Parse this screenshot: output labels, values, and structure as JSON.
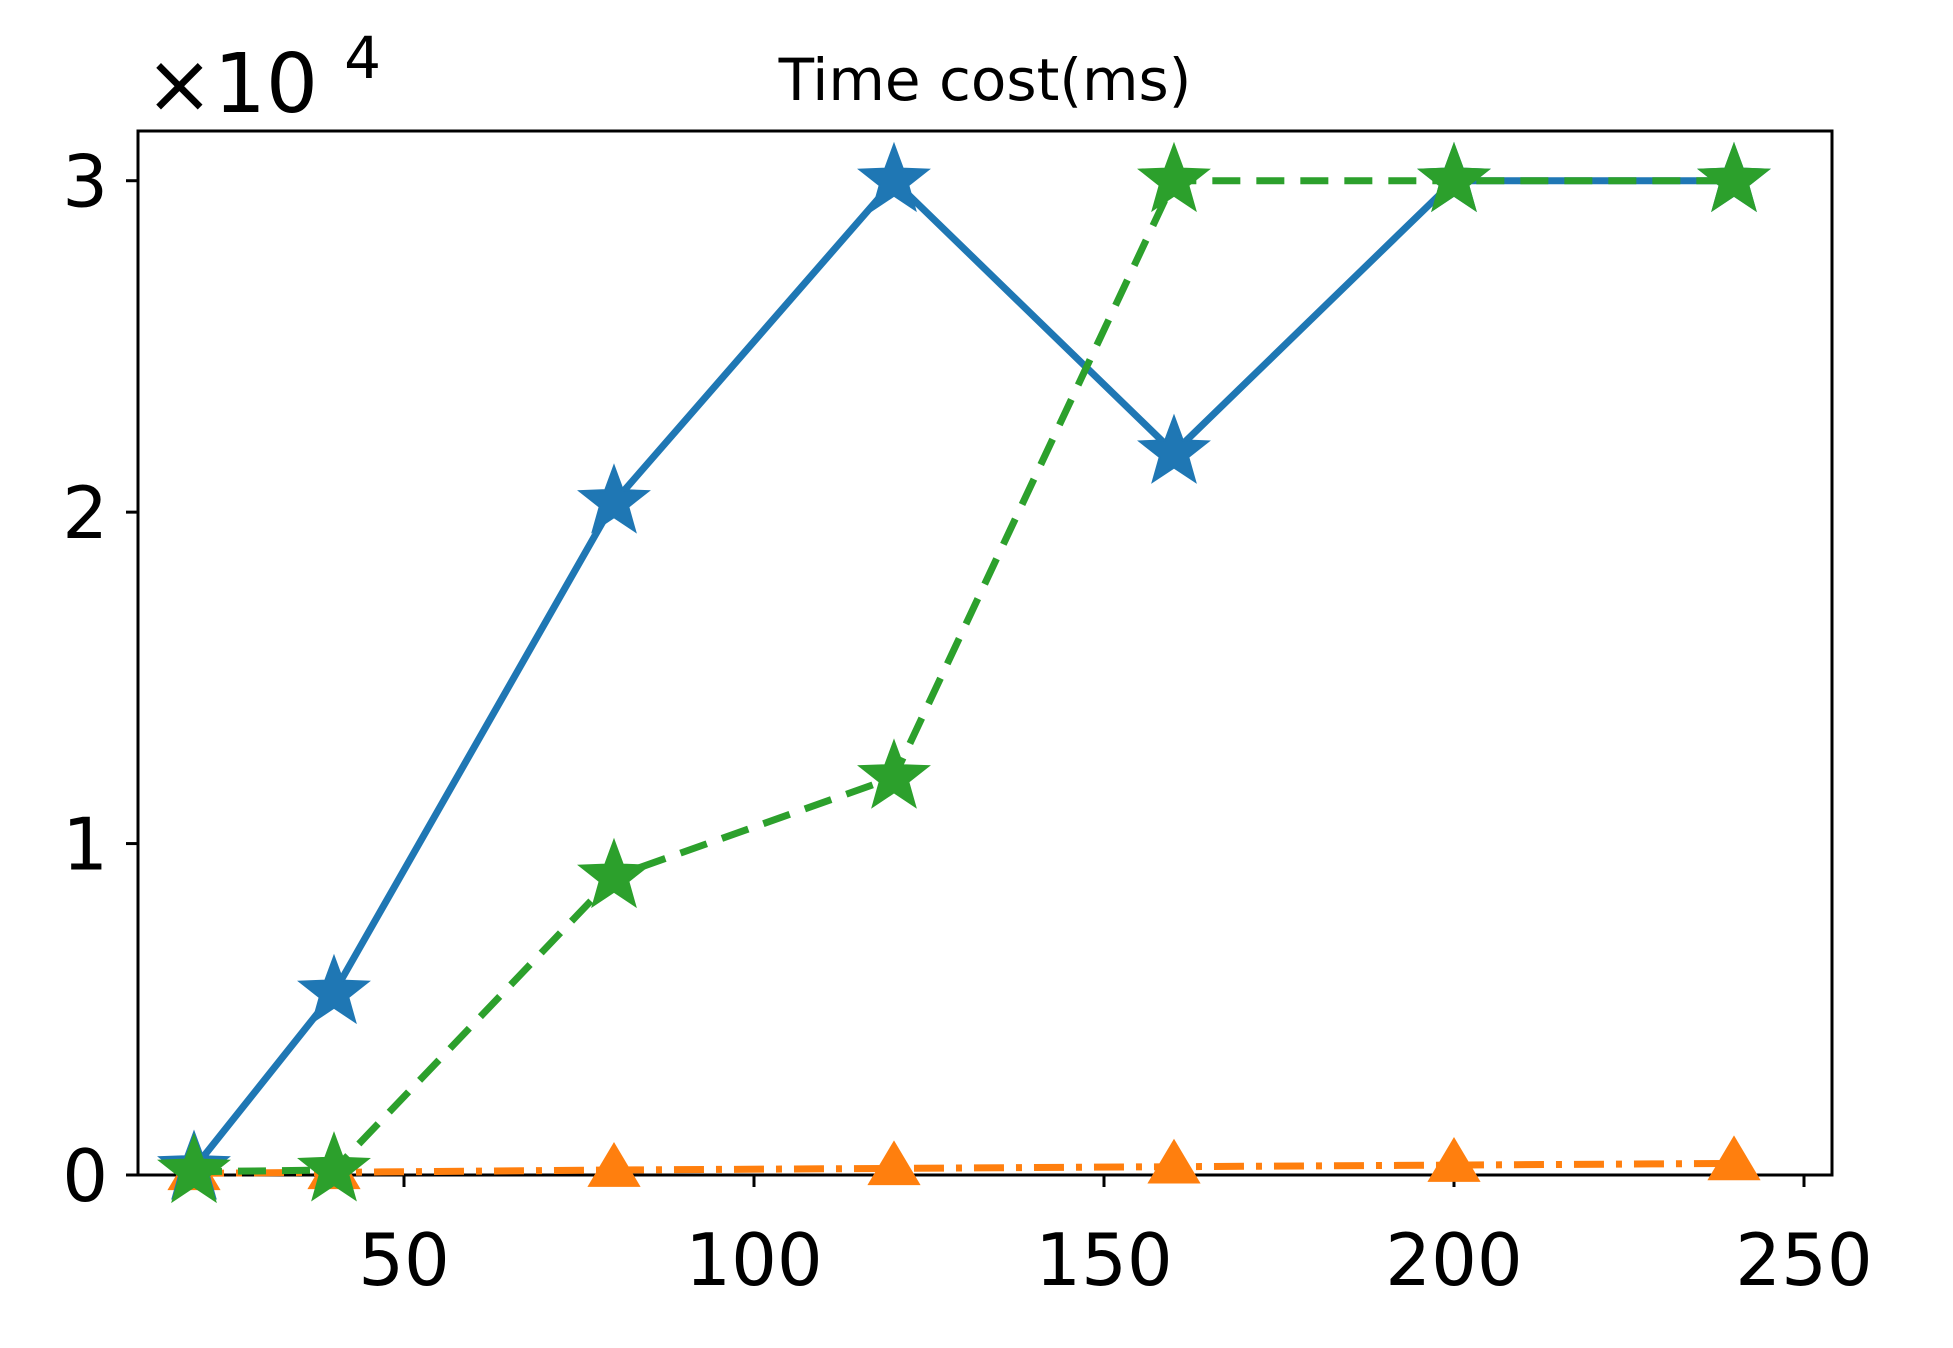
{
  "chart_data": {
    "type": "line",
    "title": "Time cost(ms)",
    "xlabel": "",
    "ylabel": "",
    "y_offset_text": {
      "base": "×10",
      "exponent": "4"
    },
    "xlim": [
      12,
      254
    ],
    "ylim": [
      0,
      31500
    ],
    "x_ticks": [
      50,
      100,
      150,
      200,
      250
    ],
    "x_tick_labels": [
      "50",
      "100",
      "150",
      "200",
      "250"
    ],
    "y_ticks": [
      0,
      10000,
      20000,
      30000
    ],
    "y_tick_labels": [
      "0",
      "1",
      "2",
      "3"
    ],
    "grid": false,
    "legend": null,
    "series": [
      {
        "color": "#1f77b4",
        "line_style": "solid",
        "marker": "star",
        "x": [
          20,
          40,
          80,
          120,
          160,
          200,
          240
        ],
        "values": [
          200,
          5500,
          20300,
          30000,
          21800,
          30000,
          30000
        ]
      },
      {
        "color": "#ff7f0e",
        "line_style": "dashdot",
        "marker": "triangle",
        "x": [
          20,
          40,
          80,
          120,
          160,
          200,
          240
        ],
        "values": [
          50,
          80,
          150,
          200,
          250,
          300,
          350
        ]
      },
      {
        "color": "#2ca02c",
        "line_style": "dashed",
        "marker": "star",
        "x": [
          20,
          40,
          80,
          120,
          160,
          200,
          240
        ],
        "values": [
          100,
          150,
          9000,
          12000,
          30000,
          30000,
          30000
        ]
      }
    ]
  }
}
